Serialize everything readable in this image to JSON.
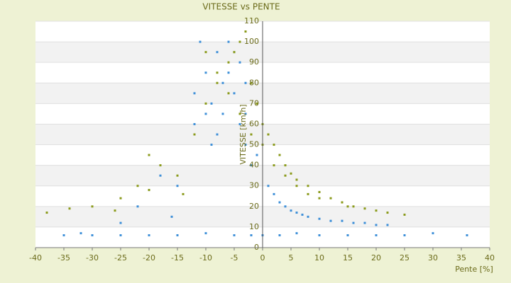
{
  "chart_data": {
    "type": "scatter",
    "title": "VITESSE vs PENTE",
    "x_label": "Pente [%]",
    "y_label": "VITESSE [km/h]",
    "xlim": [
      -40,
      40
    ],
    "xticks": [
      -40,
      -35,
      -30,
      -25,
      -20,
      -15,
      -10,
      -5,
      0,
      5,
      10,
      15,
      20,
      25,
      30,
      35,
      40
    ],
    "ylim": [
      0,
      110
    ],
    "yticks": [
      0,
      10,
      20,
      30,
      40,
      50,
      60,
      70,
      80,
      90,
      100,
      110
    ],
    "grid": true,
    "series": [
      {
        "color": "#3d8fd8",
        "x": [
          -35,
          -32,
          -30,
          -25,
          -20,
          -15,
          -10,
          -5,
          -2,
          0,
          3,
          6,
          10,
          15,
          20,
          25,
          30,
          36,
          -20,
          -18,
          -15,
          -12,
          -10,
          -9,
          -8,
          -7,
          -6,
          -5,
          -4,
          -3,
          -2,
          -1,
          -12,
          -10,
          -8,
          -6,
          -4,
          -3,
          -2,
          -11,
          -9,
          -7,
          -5,
          -3,
          1,
          2,
          3,
          4,
          5,
          6,
          7,
          8,
          10,
          12,
          14,
          16,
          18,
          20,
          22,
          -25,
          -22,
          -16
        ],
        "values": [
          6,
          7,
          6,
          6,
          6,
          6,
          7,
          6,
          6,
          6,
          6,
          7,
          6,
          6,
          6,
          6,
          7,
          6,
          28,
          35,
          30,
          60,
          85,
          70,
          95,
          80,
          100,
          75,
          90,
          65,
          55,
          45,
          75,
          65,
          55,
          85,
          60,
          50,
          40,
          100,
          50,
          65,
          95,
          80,
          30,
          26,
          22,
          20,
          18,
          17,
          16,
          15,
          14,
          13,
          13,
          12,
          12,
          11,
          11,
          12,
          20,
          15
        ]
      },
      {
        "color": "#8a9a1a",
        "x": [
          -38,
          -30,
          -25,
          -22,
          -20,
          -18,
          -15,
          -12,
          -10,
          -8,
          -6,
          -5,
          -4,
          -3,
          -2,
          -1,
          0,
          1,
          2,
          3,
          4,
          5,
          6,
          8,
          10,
          12,
          14,
          16,
          18,
          20,
          22,
          25,
          -10,
          -8,
          -6,
          -4,
          -2,
          0,
          2,
          4,
          6,
          8,
          10,
          15,
          -14,
          -20,
          -26,
          -34
        ],
        "values": [
          17,
          20,
          24,
          30,
          45,
          40,
          35,
          55,
          70,
          80,
          90,
          95,
          100,
          105,
          80,
          70,
          60,
          55,
          50,
          45,
          40,
          36,
          33,
          30,
          27,
          24,
          22,
          20,
          19,
          18,
          17,
          16,
          95,
          85,
          75,
          65,
          55,
          50,
          40,
          35,
          30,
          26,
          24,
          20,
          26,
          28,
          18,
          19
        ]
      }
    ]
  }
}
